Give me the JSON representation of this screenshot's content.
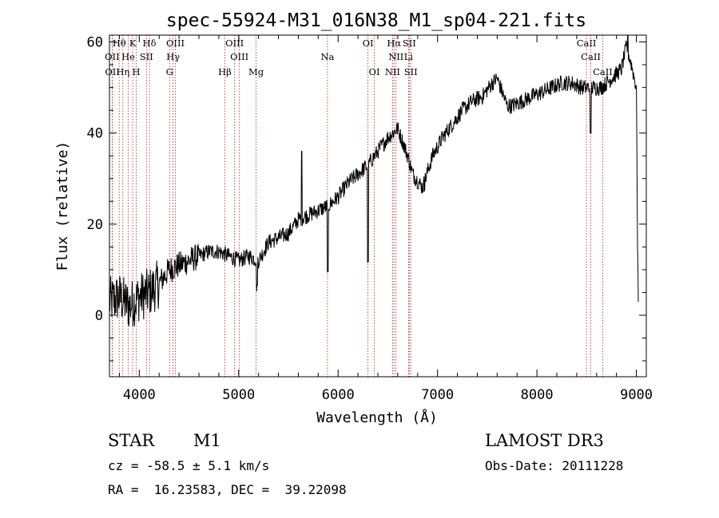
{
  "chart_data": {
    "type": "line",
    "title": "spec-55924-M31_016N38_M1_sp04-221.fits",
    "xlabel": "Wavelength (Å)",
    "ylabel": "Flux (relative)",
    "xlim": [
      3700,
      9100
    ],
    "ylim": [
      -13.5,
      61.5
    ],
    "xticks": [
      4000,
      5000,
      6000,
      7000,
      8000,
      9000
    ],
    "yticks": [
      0,
      20,
      40,
      60
    ],
    "spectrum_knots": [
      [
        3700,
        3
      ],
      [
        3800,
        4
      ],
      [
        3900,
        2
      ],
      [
        4000,
        4
      ],
      [
        4100,
        5
      ],
      [
        4200,
        7
      ],
      [
        4300,
        10
      ],
      [
        4400,
        11
      ],
      [
        4500,
        12
      ],
      [
        4600,
        13
      ],
      [
        4700,
        14
      ],
      [
        4800,
        14
      ],
      [
        4900,
        13
      ],
      [
        5000,
        12
      ],
      [
        5100,
        13
      ],
      [
        5200,
        12
      ],
      [
        5300,
        16
      ],
      [
        5400,
        17
      ],
      [
        5500,
        18
      ],
      [
        5600,
        21
      ],
      [
        5700,
        22
      ],
      [
        5800,
        23
      ],
      [
        5900,
        24
      ],
      [
        6000,
        26
      ],
      [
        6100,
        29
      ],
      [
        6200,
        31
      ],
      [
        6300,
        33
      ],
      [
        6400,
        36
      ],
      [
        6500,
        39
      ],
      [
        6600,
        41
      ],
      [
        6700,
        35
      ],
      [
        6750,
        31
      ],
      [
        6850,
        28
      ],
      [
        6950,
        35
      ],
      [
        7050,
        39
      ],
      [
        7150,
        42
      ],
      [
        7250,
        45
      ],
      [
        7350,
        47
      ],
      [
        7450,
        48
      ],
      [
        7550,
        51
      ],
      [
        7600,
        52
      ],
      [
        7700,
        46
      ],
      [
        7750,
        46
      ],
      [
        7850,
        47
      ],
      [
        7950,
        48
      ],
      [
        8050,
        49
      ],
      [
        8150,
        50
      ],
      [
        8250,
        51
      ],
      [
        8350,
        51
      ],
      [
        8450,
        50
      ],
      [
        8550,
        50
      ],
      [
        8650,
        50
      ],
      [
        8750,
        52
      ],
      [
        8850,
        54
      ],
      [
        8900,
        59
      ],
      [
        8950,
        55
      ],
      [
        9000,
        50
      ],
      [
        9010,
        20
      ],
      [
        9020,
        3
      ]
    ],
    "absorption_dips": [
      [
        5183,
        6
      ],
      [
        5895,
        9
      ],
      [
        6300,
        11
      ],
      [
        6870,
        28
      ]
    ],
    "spikes": [
      [
        5635,
        36
      ],
      [
        8540,
        40
      ],
      [
        8915,
        62
      ]
    ],
    "line_markers": [
      {
        "label": "Hθ",
        "wavelength": 3798,
        "row": 0
      },
      {
        "label": "K",
        "wavelength": 3934,
        "row": 0
      },
      {
        "label": "Hδ",
        "wavelength": 4102,
        "row": 0
      },
      {
        "label": "OIII",
        "wavelength": 4363,
        "row": 0
      },
      {
        "label": "OIII",
        "wavelength": 4959,
        "row": 0
      },
      {
        "label": "OI",
        "wavelength": 6300,
        "row": 0
      },
      {
        "label": "Hα",
        "wavelength": 6563,
        "row": 0
      },
      {
        "label": "SII",
        "wavelength": 6716,
        "row": 0
      },
      {
        "label": "CaII",
        "wavelength": 8498,
        "row": 0
      },
      {
        "label": "OII",
        "wavelength": 3727,
        "row": 1
      },
      {
        "label": "He",
        "wavelength": 3889,
        "row": 1
      },
      {
        "label": "SII",
        "wavelength": 4072,
        "row": 1
      },
      {
        "label": "Hγ",
        "wavelength": 4340,
        "row": 1
      },
      {
        "label": "OIII",
        "wavelength": 5007,
        "row": 1
      },
      {
        "label": "Na",
        "wavelength": 5893,
        "row": 1
      },
      {
        "label": "NII",
        "wavelength": 6583,
        "row": 1
      },
      {
        "label": "Li",
        "wavelength": 6708,
        "row": 1
      },
      {
        "label": "CaII",
        "wavelength": 8542,
        "row": 1
      },
      {
        "label": "OII",
        "wavelength": 3729,
        "row": 2
      },
      {
        "label": "Hη",
        "wavelength": 3835,
        "row": 2
      },
      {
        "label": "H",
        "wavelength": 3969,
        "row": 2
      },
      {
        "label": "G",
        "wavelength": 4305,
        "row": 2
      },
      {
        "label": "Hβ",
        "wavelength": 4861,
        "row": 2
      },
      {
        "label": "Mg",
        "wavelength": 5175,
        "row": 2
      },
      {
        "label": "OI",
        "wavelength": 6364,
        "row": 2
      },
      {
        "label": "NII",
        "wavelength": 6548,
        "row": 2
      },
      {
        "label": "SII",
        "wavelength": 6731,
        "row": 2
      },
      {
        "label": "CaII",
        "wavelength": 8662,
        "row": 2
      }
    ]
  },
  "info": {
    "class": "STAR",
    "subclass": "M1",
    "survey": "LAMOST DR3",
    "cz": "cz = -58.5 ± 5.1 km/s",
    "obs_date": "Obs-Date: 20111228",
    "coords": "RA =  16.23583, DEC =  39.22098"
  },
  "colors": {
    "marker": "#b22222",
    "spectrum": "#000000"
  }
}
